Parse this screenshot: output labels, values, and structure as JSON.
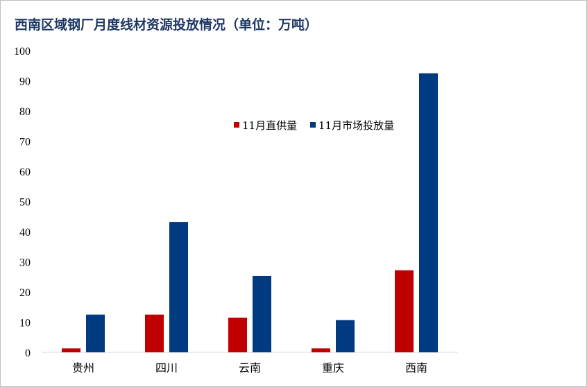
{
  "chart_data": {
    "type": "bar",
    "title": "西南区域钢厂月度线材资源投放情况（单位：万吨）",
    "categories": [
      "贵州",
      "四川",
      "云南",
      "重庆",
      "西南"
    ],
    "series": [
      {
        "name": "11月直供量",
        "values": [
          1.3,
          12.5,
          11.5,
          1.3,
          27.2
        ],
        "color": "#c00000"
      },
      {
        "name": "11月市场投放量",
        "values": [
          12.5,
          43.2,
          25.3,
          10.7,
          92.5
        ],
        "color": "#003a80"
      }
    ],
    "ylim": [
      0,
      100
    ],
    "yticks": [
      0,
      10,
      20,
      30,
      40,
      50,
      60,
      70,
      80,
      90,
      100
    ],
    "xlabel": "",
    "ylabel": "",
    "grid": false,
    "legend": "top-right"
  }
}
